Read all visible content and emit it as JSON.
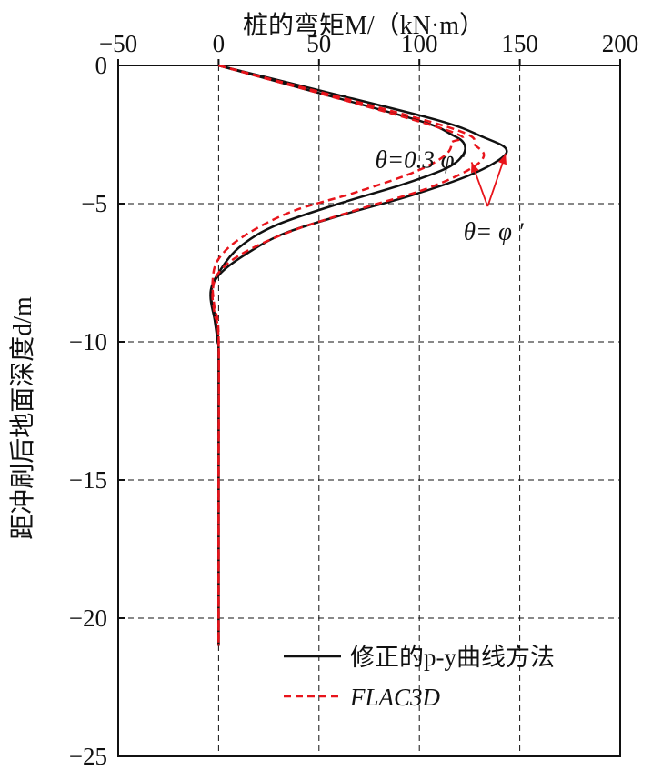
{
  "chart_data": {
    "type": "line",
    "xlabel": "桩的弯矩M/（kN·m）",
    "ylabel": "距冲刷后地面深度d/m",
    "xlim": [
      -50,
      200
    ],
    "ylim": [
      -25,
      0
    ],
    "x_ticks": [
      -50,
      0,
      50,
      100,
      150,
      200
    ],
    "y_ticks": [
      0,
      -5,
      -10,
      -15,
      -20,
      -25
    ],
    "x_tick_labels": [
      "−50",
      "0",
      "50",
      "100",
      "150",
      "200"
    ],
    "y_tick_labels": [
      "0",
      "−5",
      "−10",
      "−15",
      "−20",
      "−25"
    ],
    "grid": true,
    "x_axis_position": "top",
    "legend_position": "bottom-right",
    "colors": {
      "pycurve": "#111111",
      "flac": "#e8141b"
    },
    "series": [
      {
        "name": "修正的p-y曲线方法",
        "style": "solid",
        "color": "#111111",
        "curves": [
          {
            "case": "θ=0.3φ′",
            "points": [
              [
                0,
                0
              ],
              [
                40,
                -0.8
              ],
              [
                100,
                -2.0
              ],
              [
                116,
                -2.5
              ],
              [
                122,
                -2.8
              ],
              [
                122,
                -3.2
              ],
              [
                114,
                -3.7
              ],
              [
                92,
                -4.3
              ],
              [
                60,
                -5.0
              ],
              [
                28,
                -5.8
              ],
              [
                10,
                -6.6
              ],
              [
                0,
                -7.5
              ],
              [
                -4,
                -8.2
              ],
              [
                -2,
                -9.0
              ],
              [
                -0.5,
                -9.8
              ],
              [
                0,
                -10.5
              ],
              [
                0,
                -15
              ],
              [
                0,
                -21
              ]
            ]
          },
          {
            "case": "θ=φ′",
            "points": [
              [
                0,
                0
              ],
              [
                50,
                -0.9
              ],
              [
                110,
                -2.0
              ],
              [
                132,
                -2.6
              ],
              [
                143,
                -3.0
              ],
              [
                140,
                -3.4
              ],
              [
                124,
                -4.0
              ],
              [
                96,
                -4.7
              ],
              [
                62,
                -5.4
              ],
              [
                32,
                -6.1
              ],
              [
                12,
                -6.9
              ],
              [
                0,
                -7.6
              ],
              [
                -4,
                -8.3
              ],
              [
                -2,
                -9.2
              ],
              [
                -0.5,
                -10.0
              ],
              [
                0,
                -10.5
              ],
              [
                0,
                -15
              ],
              [
                0,
                -21
              ]
            ]
          }
        ]
      },
      {
        "name": "FLAC3D",
        "style": "dashed",
        "color": "#e8141b",
        "curves": [
          {
            "case": "θ=0.3φ′",
            "points": [
              [
                0,
                0
              ],
              [
                112,
                -2.3
              ],
              [
                116,
                -2.8
              ],
              [
                112,
                -3.3
              ],
              [
                96,
                -3.9
              ],
              [
                68,
                -4.6
              ],
              [
                36,
                -5.3
              ],
              [
                12,
                -6.2
              ],
              [
                0,
                -7.0
              ],
              [
                -3,
                -7.8
              ],
              [
                -2,
                -8.8
              ],
              [
                0,
                -9.8
              ],
              [
                0,
                -15
              ],
              [
                0,
                -21
              ]
            ]
          },
          {
            "case": "θ=φ′",
            "points": [
              [
                0,
                0
              ],
              [
                113,
                -2.2
              ],
              [
                128,
                -2.9
              ],
              [
                132,
                -3.3
              ],
              [
                124,
                -3.8
              ],
              [
                102,
                -4.5
              ],
              [
                70,
                -5.2
              ],
              [
                36,
                -6.0
              ],
              [
                12,
                -6.8
              ],
              [
                0,
                -7.5
              ],
              [
                -3,
                -8.2
              ],
              [
                -2,
                -9.0
              ],
              [
                0,
                -10.0
              ],
              [
                0,
                -15
              ],
              [
                0,
                -21
              ]
            ]
          }
        ]
      }
    ],
    "annotations": [
      {
        "text": "θ=0.3 φ ′",
        "anchor": [
          78,
          -3.4
        ]
      },
      {
        "text": "θ= φ ′",
        "anchor": [
          122,
          -6.0
        ]
      }
    ],
    "arrows": [
      {
        "from": [
          134,
          -5.1
        ],
        "to": [
          126,
          -3.5
        ]
      },
      {
        "from": [
          134,
          -5.1
        ],
        "to": [
          143,
          -3.2
        ]
      }
    ]
  }
}
